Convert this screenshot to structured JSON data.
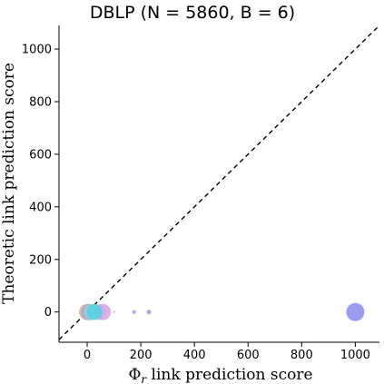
{
  "chart_data": {
    "type": "scatter",
    "title": "DBLP (N = 5860, B = 6)",
    "xlabel": "Φ_r link prediction score",
    "xlabel_parts": [
      "Φ",
      "r",
      " link prediction score"
    ],
    "ylabel": "Theoretic link prediction score",
    "xlim": [
      -105,
      1090
    ],
    "ylim": [
      -115,
      1090
    ],
    "x_ticks": [
      0,
      200,
      400,
      600,
      800,
      1000
    ],
    "y_ticks": [
      0,
      200,
      400,
      600,
      800,
      1000
    ],
    "x_tick_labels": [
      "0",
      "200",
      "400",
      "600",
      "800",
      "1000"
    ],
    "y_tick_labels": [
      "0",
      "200",
      "400",
      "600",
      "800",
      "1000"
    ],
    "grid": false,
    "reference_line": {
      "from": [
        -105,
        -105
      ],
      "to": [
        1090,
        1090
      ],
      "style": "dashed",
      "color": "#000000"
    },
    "points": [
      {
        "x": 0,
        "y": 0,
        "r": 9,
        "color": "#cfb58a",
        "opacity": 0.85
      },
      {
        "x": 8,
        "y": 0,
        "r": 9,
        "color": "#b39bd9",
        "opacity": 0.75
      },
      {
        "x": 18,
        "y": 0,
        "r": 9,
        "color": "#8fd4e4",
        "opacity": 0.8
      },
      {
        "x": 40,
        "y": 0,
        "r": 9,
        "color": "#a6e3c9",
        "opacity": 0.75
      },
      {
        "x": 58,
        "y": 0,
        "r": 9,
        "color": "#d8a0ea",
        "opacity": 0.85
      },
      {
        "x": 28,
        "y": 0,
        "r": 8.5,
        "color": "#4fd2e2",
        "opacity": 0.85
      },
      {
        "x": 100,
        "y": 0,
        "r": 1,
        "color": "#9aa0f0",
        "opacity": 0.9
      },
      {
        "x": 175,
        "y": 0,
        "r": 2,
        "color": "#9aa0f0",
        "opacity": 0.9
      },
      {
        "x": 230,
        "y": 0,
        "r": 2.5,
        "color": "#9aa0f0",
        "opacity": 0.9
      },
      {
        "x": 1000,
        "y": 0,
        "r": 10,
        "color": "#8f93f0",
        "opacity": 0.9
      }
    ]
  }
}
